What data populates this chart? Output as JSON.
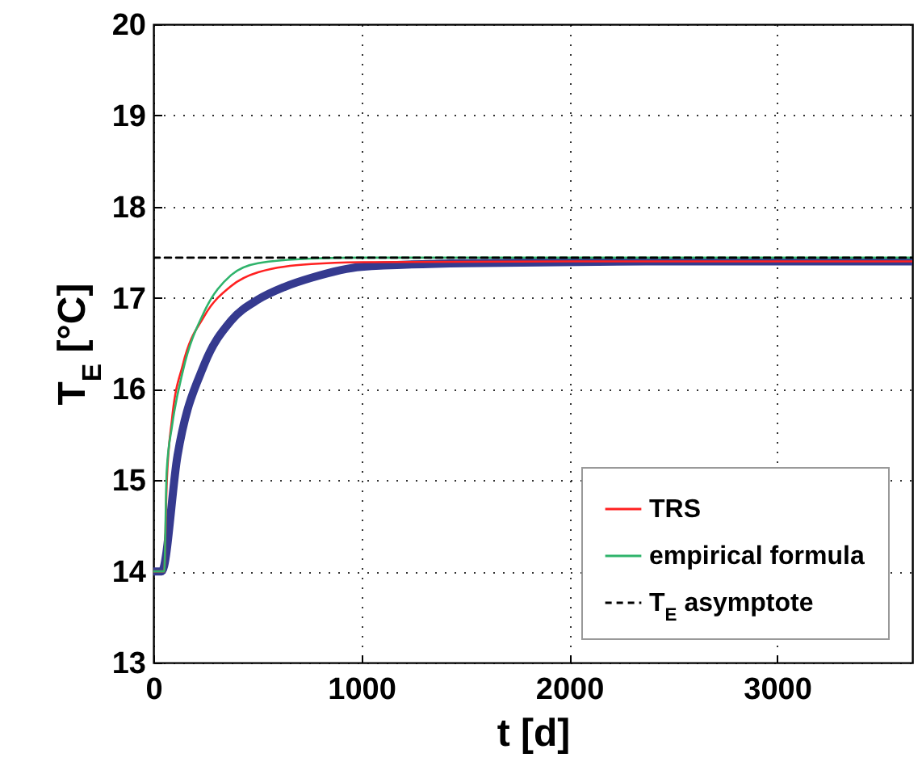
{
  "chart_data": {
    "type": "line",
    "xlabel": "t [d]",
    "ylabel": "T$_{E}$ [°C]",
    "xlim": [
      0,
      3650
    ],
    "xticks": [
      0,
      1000,
      2000,
      3000
    ],
    "ylim": [
      13,
      20
    ],
    "yticks": [
      13,
      14,
      15,
      16,
      17,
      18,
      19,
      20
    ],
    "grid": true,
    "legend": "bottom right",
    "line_style": "solid",
    "series": [
      {
        "color": "#353a8f",
        "x": [
          0,
          40,
          116,
          245,
          374,
          503,
          631,
          760,
          1000,
          1500,
          2500,
          3650
        ],
        "values": [
          14,
          14,
          15.27,
          16.27,
          16.75,
          16.98,
          17.12,
          17.22,
          17.34,
          17.38,
          17.4,
          17.4
        ]
      },
      {
        "name": "TRS",
        "color": "#ff2020",
        "x": [
          0,
          52,
          64,
          90,
          142,
          245,
          374,
          503,
          760,
          1000,
          2000,
          3650
        ],
        "values": [
          14,
          14,
          14.97,
          15.68,
          16.27,
          16.8,
          17.13,
          17.28,
          17.37,
          17.39,
          17.4,
          17.4
        ]
      },
      {
        "name": "empirical formula",
        "color": "#2fb36b",
        "x": [
          0,
          52,
          64,
          90,
          142,
          245,
          374,
          503,
          760,
          1000,
          2000,
          3650
        ],
        "values": [
          14,
          14,
          15.1,
          15.6,
          16.2,
          16.85,
          17.25,
          17.38,
          17.43,
          17.44,
          17.44,
          17.44
        ]
      },
      {
        "name": "T$_{E}$ asymptote",
        "color": "#000000",
        "line_style": "dashed",
        "x": [
          0,
          3650
        ],
        "values": [
          17.44,
          17.44
        ]
      }
    ]
  }
}
